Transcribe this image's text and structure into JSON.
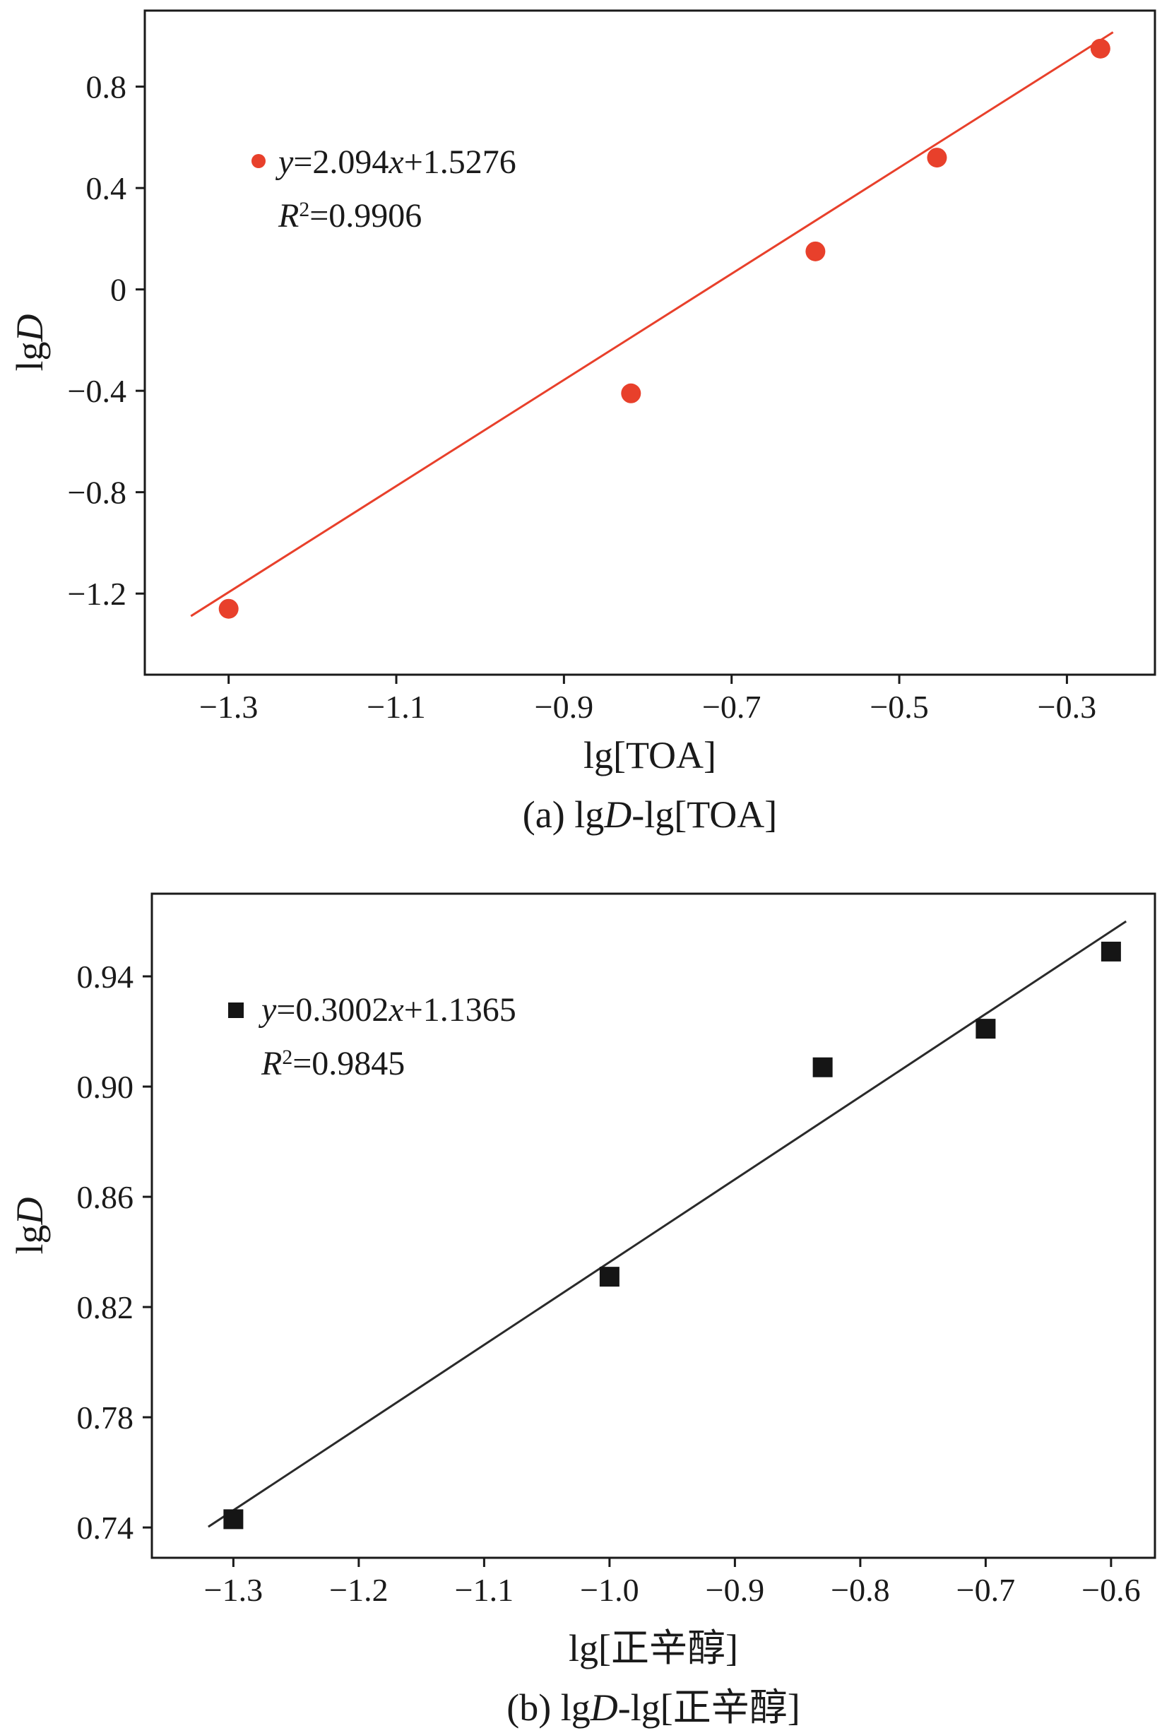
{
  "figure": {
    "background": "#ffffff",
    "text_color": "#1a1a1a"
  },
  "chart_data": [
    {
      "type": "scatter",
      "panel": "a",
      "caption_text": "(a) lgD-lg[TOA]",
      "caption_segments": [
        {
          "t": "(a) lg"
        },
        {
          "t": "D",
          "i": true
        },
        {
          "t": "-lg[TOA]"
        }
      ],
      "xlabel_text": "lg[TOA]",
      "xlabel_segments": [
        {
          "t": "lg[TOA]"
        }
      ],
      "ylabel_text": "lgD",
      "ylabel_segments": [
        {
          "t": "lg"
        },
        {
          "t": "D",
          "i": true
        }
      ],
      "equation": "y=2.094x+1.5276",
      "equation_segments": [
        {
          "t": "y",
          "i": true
        },
        {
          "t": "=2.094"
        },
        {
          "t": "x",
          "i": true
        },
        {
          "t": "+1.5276"
        }
      ],
      "r_squared": "R²=0.9906",
      "r_squared_segments": [
        {
          "t": "R",
          "i": true
        },
        {
          "t": "2",
          "sup": true
        },
        {
          "t": "=0.9906"
        }
      ],
      "marker": "circle",
      "marker_color": "#e8402b",
      "line_color": "#e8402b",
      "axis_color": "#1a1a1a",
      "xlim": [
        -1.4,
        -0.195
      ],
      "ylim": [
        -1.52,
        1.1
      ],
      "x_ticks": [
        {
          "v": -1.3,
          "label": "−1.3"
        },
        {
          "v": -1.1,
          "label": "−1.1"
        },
        {
          "v": -0.9,
          "label": "−0.9"
        },
        {
          "v": -0.7,
          "label": "−0.7"
        },
        {
          "v": -0.5,
          "label": "−0.5"
        },
        {
          "v": -0.3,
          "label": "−0.3"
        }
      ],
      "y_ticks": [
        {
          "v": 0.8,
          "label": "0.8"
        },
        {
          "v": 0.4,
          "label": "0.4"
        },
        {
          "v": 0.0,
          "label": "0"
        },
        {
          "v": -0.4,
          "label": "−0.4"
        },
        {
          "v": -0.8,
          "label": "−0.8"
        },
        {
          "v": -1.2,
          "label": "−1.2"
        }
      ],
      "points": [
        [
          -1.3,
          -1.26
        ],
        [
          -0.82,
          -0.41
        ],
        [
          -0.6,
          0.15
        ],
        [
          -0.455,
          0.52
        ],
        [
          -0.26,
          0.95
        ]
      ],
      "fit": {
        "slope": 2.094,
        "intercept": 1.5276,
        "x_start": -1.345,
        "x_end": -0.245
      }
    },
    {
      "type": "scatter",
      "panel": "b",
      "caption_text": "(b) lgD-lg[正辛醇]",
      "caption_segments": [
        {
          "t": "(b) lg"
        },
        {
          "t": "D",
          "i": true
        },
        {
          "t": "-lg[正辛醇]"
        }
      ],
      "xlabel_text": "lg[正辛醇]",
      "xlabel_segments": [
        {
          "t": "lg[正辛醇]"
        }
      ],
      "ylabel_text": "lgD",
      "ylabel_segments": [
        {
          "t": "lg"
        },
        {
          "t": "D",
          "i": true
        }
      ],
      "equation": "y=0.3002x+1.1365",
      "equation_segments": [
        {
          "t": "y",
          "i": true
        },
        {
          "t": "=0.3002"
        },
        {
          "t": "x",
          "i": true
        },
        {
          "t": "+1.1365"
        }
      ],
      "r_squared": "R²=0.9845",
      "r_squared_segments": [
        {
          "t": "R",
          "i": true
        },
        {
          "t": "2",
          "sup": true
        },
        {
          "t": "=0.9845"
        }
      ],
      "marker": "square",
      "marker_color": "#151515",
      "line_color": "#2a2a2a",
      "axis_color": "#1a1a1a",
      "xlim": [
        -1.365,
        -0.565
      ],
      "ylim": [
        0.729,
        0.97
      ],
      "x_ticks": [
        {
          "v": -1.3,
          "label": "−1.3"
        },
        {
          "v": -1.2,
          "label": "−1.2"
        },
        {
          "v": -1.1,
          "label": "−1.1"
        },
        {
          "v": -1.0,
          "label": "−1.0"
        },
        {
          "v": -0.9,
          "label": "−0.9"
        },
        {
          "v": -0.8,
          "label": "−0.8"
        },
        {
          "v": -0.7,
          "label": "−0.7"
        },
        {
          "v": -0.6,
          "label": "−0.6"
        }
      ],
      "y_ticks": [
        {
          "v": 0.74,
          "label": "0.74"
        },
        {
          "v": 0.78,
          "label": "0.78"
        },
        {
          "v": 0.82,
          "label": "0.82"
        },
        {
          "v": 0.86,
          "label": "0.86"
        },
        {
          "v": 0.9,
          "label": "0.90"
        },
        {
          "v": 0.94,
          "label": "0.94"
        }
      ],
      "points": [
        [
          -1.3,
          0.743
        ],
        [
          -1.0,
          0.831
        ],
        [
          -0.83,
          0.907
        ],
        [
          -0.7,
          0.921
        ],
        [
          -0.6,
          0.949
        ]
      ],
      "fit": {
        "slope": 0.3002,
        "intercept": 1.1365,
        "x_start": -1.32,
        "x_end": -0.588
      }
    }
  ]
}
